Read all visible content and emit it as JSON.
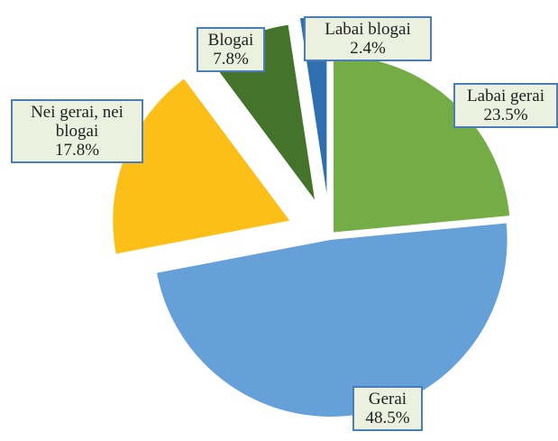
{
  "chart_data": {
    "type": "pie",
    "categories": [
      "Labai gerai",
      "Gerai",
      "Nei gerai, nei blogai",
      "Blogai",
      "Labai blogai"
    ],
    "values": [
      23.5,
      48.5,
      17.8,
      7.8,
      2.4
    ],
    "value_labels": [
      "23.5%",
      "48.5%",
      "17.8%",
      "7.8%",
      "2.4%"
    ],
    "colors": [
      "#74ad45",
      "#66a0d8",
      "#fcbf17",
      "#44732c",
      "#2f6fb0"
    ]
  }
}
